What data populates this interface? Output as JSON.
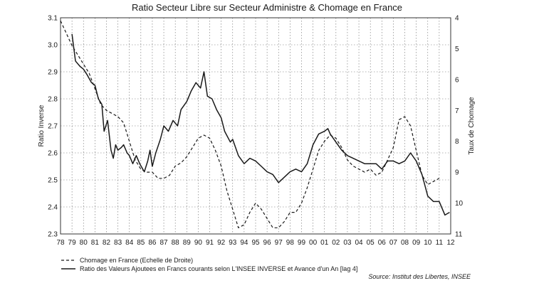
{
  "chart_data": {
    "type": "line",
    "title": "Ratio Secteur Libre sur Secteur Administre & Chomage en France",
    "ylabel_left": "Ratio Inverse",
    "ylabel_right": "Taux de Chomage",
    "ylim_left": [
      3.1,
      2.3
    ],
    "ylim_right": [
      4,
      11
    ],
    "xlim": [
      78,
      112
    ],
    "x_tick_labels": [
      "78",
      "79",
      "80",
      "81",
      "82",
      "83",
      "84",
      "85",
      "86",
      "87",
      "88",
      "89",
      "90",
      "91",
      "92",
      "93",
      "94",
      "95",
      "96",
      "97",
      "98",
      "99",
      "00",
      "01",
      "02",
      "03",
      "04",
      "05",
      "06",
      "07",
      "08",
      "09",
      "10",
      "11",
      "12"
    ],
    "y_left_ticks": [
      "2.3",
      "2.4",
      "2.5",
      "2.6",
      "2.7",
      "2.8",
      "2.9",
      "3.0",
      "3.1"
    ],
    "y_right_ticks": [
      "11",
      "10",
      "9",
      "8",
      "7",
      "6",
      "5",
      "4"
    ],
    "grid": true,
    "legend_placement": "bottom-left",
    "series": [
      {
        "name": "Chomage en France (Echelle de Droite)",
        "axis": "right",
        "style": "dashed",
        "points": [
          [
            78.0,
            4.1
          ],
          [
            78.5,
            4.5
          ],
          [
            79.0,
            4.9
          ],
          [
            79.5,
            5.2
          ],
          [
            80.0,
            5.5
          ],
          [
            80.5,
            5.8
          ],
          [
            81.0,
            6.3
          ],
          [
            81.5,
            6.8
          ],
          [
            82.0,
            7.0
          ],
          [
            82.5,
            7.1
          ],
          [
            83.0,
            7.2
          ],
          [
            83.5,
            7.4
          ],
          [
            84.0,
            8.0
          ],
          [
            84.5,
            8.6
          ],
          [
            85.0,
            8.9
          ],
          [
            85.5,
            9.0
          ],
          [
            86.0,
            9.0
          ],
          [
            86.5,
            9.2
          ],
          [
            87.0,
            9.2
          ],
          [
            87.5,
            9.1
          ],
          [
            88.0,
            8.8
          ],
          [
            88.5,
            8.7
          ],
          [
            89.0,
            8.5
          ],
          [
            89.5,
            8.2
          ],
          [
            90.0,
            7.9
          ],
          [
            90.5,
            7.8
          ],
          [
            91.0,
            7.9
          ],
          [
            91.5,
            8.3
          ],
          [
            92.0,
            8.8
          ],
          [
            92.5,
            9.6
          ],
          [
            93.0,
            10.2
          ],
          [
            93.5,
            10.8
          ],
          [
            94.0,
            10.7
          ],
          [
            94.5,
            10.3
          ],
          [
            95.0,
            10.0
          ],
          [
            95.5,
            10.2
          ],
          [
            96.0,
            10.5
          ],
          [
            96.5,
            10.8
          ],
          [
            97.0,
            10.8
          ],
          [
            97.5,
            10.6
          ],
          [
            98.0,
            10.3
          ],
          [
            98.5,
            10.3
          ],
          [
            99.0,
            10.0
          ],
          [
            99.5,
            9.5
          ],
          [
            100.0,
            8.9
          ],
          [
            100.5,
            8.3
          ],
          [
            101.0,
            8.0
          ],
          [
            101.5,
            7.8
          ],
          [
            102.0,
            7.9
          ],
          [
            102.5,
            8.2
          ],
          [
            103.0,
            8.6
          ],
          [
            103.5,
            8.8
          ],
          [
            104.0,
            8.9
          ],
          [
            104.5,
            9.0
          ],
          [
            105.0,
            8.9
          ],
          [
            105.5,
            9.1
          ],
          [
            106.0,
            9.0
          ],
          [
            106.5,
            8.6
          ],
          [
            107.0,
            8.2
          ],
          [
            107.5,
            7.3
          ],
          [
            108.0,
            7.2
          ],
          [
            108.5,
            7.5
          ],
          [
            109.0,
            8.3
          ],
          [
            109.5,
            9.1
          ],
          [
            110.0,
            9.4
          ],
          [
            110.5,
            9.3
          ],
          [
            111.0,
            9.2
          ]
        ]
      },
      {
        "name": "Ratio des Valeurs Ajoutees en Francs courants selon L'INSEE INVERSE et Avance d'un An [lag 4]",
        "axis": "left",
        "style": "solid",
        "points": [
          [
            79.0,
            3.04
          ],
          [
            79.3,
            2.94
          ],
          [
            79.7,
            2.92
          ],
          [
            80.0,
            2.91
          ],
          [
            80.3,
            2.89
          ],
          [
            80.7,
            2.86
          ],
          [
            81.0,
            2.85
          ],
          [
            81.3,
            2.8
          ],
          [
            81.6,
            2.78
          ],
          [
            81.8,
            2.68
          ],
          [
            82.1,
            2.72
          ],
          [
            82.4,
            2.61
          ],
          [
            82.6,
            2.58
          ],
          [
            82.8,
            2.63
          ],
          [
            83.0,
            2.61
          ],
          [
            83.3,
            2.62
          ],
          [
            83.5,
            2.63
          ],
          [
            83.8,
            2.6
          ],
          [
            84.0,
            2.59
          ],
          [
            84.3,
            2.56
          ],
          [
            84.6,
            2.59
          ],
          [
            84.9,
            2.56
          ],
          [
            85.3,
            2.53
          ],
          [
            85.6,
            2.57
          ],
          [
            85.8,
            2.61
          ],
          [
            86.0,
            2.55
          ],
          [
            86.3,
            2.6
          ],
          [
            86.7,
            2.65
          ],
          [
            87.0,
            2.7
          ],
          [
            87.4,
            2.68
          ],
          [
            87.8,
            2.72
          ],
          [
            88.2,
            2.7
          ],
          [
            88.5,
            2.76
          ],
          [
            89.0,
            2.79
          ],
          [
            89.4,
            2.83
          ],
          [
            89.8,
            2.86
          ],
          [
            90.2,
            2.84
          ],
          [
            90.5,
            2.9
          ],
          [
            90.8,
            2.81
          ],
          [
            91.2,
            2.8
          ],
          [
            91.6,
            2.76
          ],
          [
            92.0,
            2.73
          ],
          [
            92.3,
            2.68
          ],
          [
            92.8,
            2.64
          ],
          [
            93.0,
            2.65
          ],
          [
            93.5,
            2.59
          ],
          [
            94.0,
            2.56
          ],
          [
            94.5,
            2.58
          ],
          [
            95.0,
            2.57
          ],
          [
            95.5,
            2.55
          ],
          [
            96.0,
            2.53
          ],
          [
            96.5,
            2.52
          ],
          [
            97.0,
            2.49
          ],
          [
            97.5,
            2.51
          ],
          [
            98.0,
            2.53
          ],
          [
            98.5,
            2.54
          ],
          [
            99.0,
            2.53
          ],
          [
            99.5,
            2.56
          ],
          [
            100.0,
            2.63
          ],
          [
            100.5,
            2.67
          ],
          [
            101.0,
            2.68
          ],
          [
            101.3,
            2.69
          ],
          [
            101.5,
            2.67
          ],
          [
            102.0,
            2.64
          ],
          [
            102.5,
            2.61
          ],
          [
            103.0,
            2.59
          ],
          [
            103.5,
            2.58
          ],
          [
            104.0,
            2.57
          ],
          [
            104.5,
            2.56
          ],
          [
            105.0,
            2.56
          ],
          [
            105.5,
            2.56
          ],
          [
            106.0,
            2.54
          ],
          [
            106.5,
            2.57
          ],
          [
            107.0,
            2.57
          ],
          [
            107.5,
            2.56
          ],
          [
            108.0,
            2.57
          ],
          [
            108.5,
            2.6
          ],
          [
            109.0,
            2.57
          ],
          [
            109.5,
            2.52
          ],
          [
            110.0,
            2.44
          ],
          [
            110.5,
            2.42
          ],
          [
            111.0,
            2.42
          ],
          [
            111.5,
            2.37
          ],
          [
            111.9,
            2.38
          ]
        ]
      }
    ],
    "source": "Source: Institut des Libertes, INSEE"
  }
}
